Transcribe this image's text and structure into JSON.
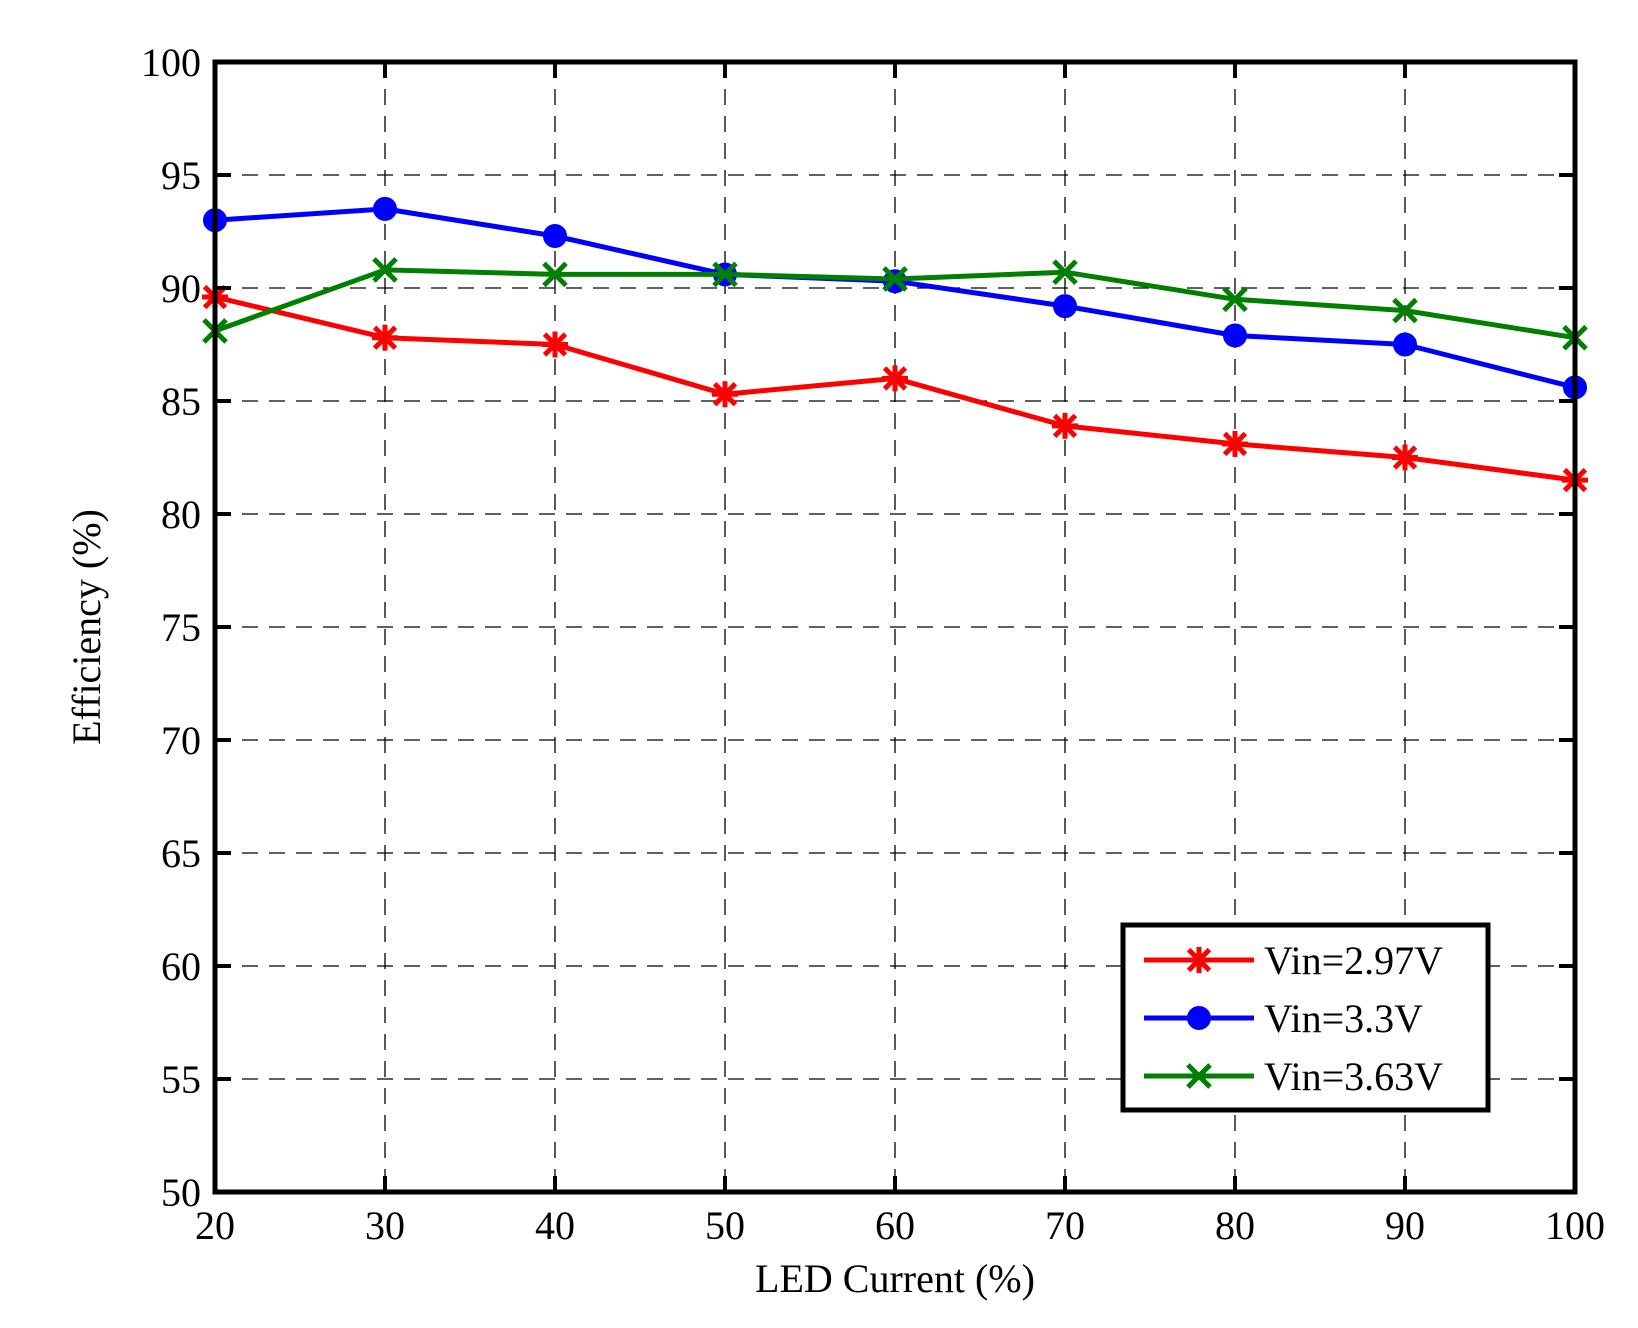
{
  "chart_data": {
    "type": "line",
    "title": "",
    "xlabel": "LED Current (%)",
    "ylabel": "Efficiency (%)",
    "x": [
      20,
      30,
      40,
      50,
      60,
      70,
      80,
      90,
      100
    ],
    "xlim": [
      20,
      100
    ],
    "ylim": [
      50,
      100
    ],
    "xticks": [
      "20",
      "30",
      "40",
      "50",
      "60",
      "70",
      "80",
      "90",
      "100"
    ],
    "yticks": [
      "50",
      "55",
      "60",
      "65",
      "70",
      "75",
      "80",
      "85",
      "90",
      "95",
      "100"
    ],
    "grid": true,
    "legend_position": "bottom-right",
    "series": [
      {
        "name": "Vin=2.97V",
        "color": "#ff0000",
        "marker": "asterisk",
        "values": [
          89.6,
          87.8,
          87.5,
          85.3,
          86.0,
          83.9,
          83.1,
          82.5,
          81.5
        ]
      },
      {
        "name": "Vin=3.3V",
        "color": "#0000ff",
        "marker": "circle",
        "values": [
          93.0,
          93.5,
          92.3,
          90.6,
          90.3,
          89.2,
          87.9,
          87.5,
          85.6
        ]
      },
      {
        "name": "Vin=3.63V",
        "color": "#008000",
        "marker": "x",
        "values": [
          88.1,
          90.8,
          90.6,
          90.6,
          90.4,
          90.7,
          89.5,
          89.0,
          87.8
        ]
      }
    ]
  }
}
